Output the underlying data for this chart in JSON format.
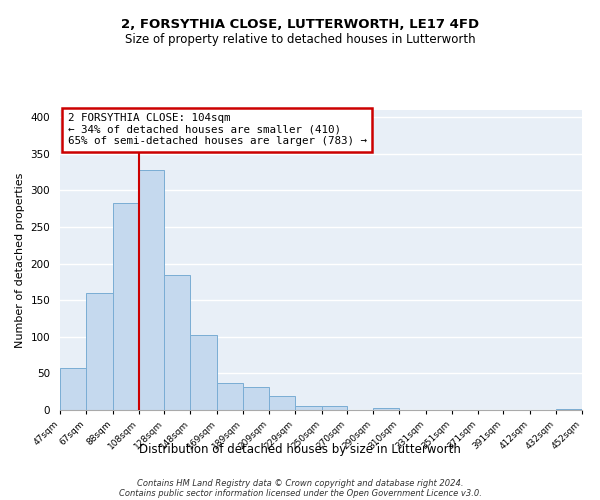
{
  "title": "2, FORSYTHIA CLOSE, LUTTERWORTH, LE17 4FD",
  "subtitle": "Size of property relative to detached houses in Lutterworth",
  "xlabel": "Distribution of detached houses by size in Lutterworth",
  "ylabel": "Number of detached properties",
  "bar_color": "#c5d9ee",
  "bar_edge_color": "#7aadd4",
  "annotation_box_text": "2 FORSYTHIA CLOSE: 104sqm\n← 34% of detached houses are smaller (410)\n65% of semi-detached houses are larger (783) →",
  "annotation_box_edge_color": "#cc0000",
  "red_line_x": 108,
  "red_line_color": "#cc0000",
  "footer_line1": "Contains HM Land Registry data © Crown copyright and database right 2024.",
  "footer_line2": "Contains public sector information licensed under the Open Government Licence v3.0.",
  "bins": [
    47,
    67,
    88,
    108,
    128,
    148,
    169,
    189,
    209,
    229,
    250,
    270,
    290,
    310,
    331,
    351,
    371,
    391,
    412,
    432,
    452
  ],
  "counts": [
    57,
    160,
    283,
    328,
    185,
    103,
    37,
    32,
    19,
    6,
    5,
    0,
    3,
    0,
    0,
    0,
    0,
    0,
    0,
    2
  ],
  "tick_labels": [
    "47sqm",
    "67sqm",
    "88sqm",
    "108sqm",
    "128sqm",
    "148sqm",
    "169sqm",
    "189sqm",
    "209sqm",
    "229sqm",
    "250sqm",
    "270sqm",
    "290sqm",
    "310sqm",
    "331sqm",
    "351sqm",
    "371sqm",
    "391sqm",
    "412sqm",
    "432sqm",
    "452sqm"
  ],
  "ylim": [
    0,
    410
  ],
  "yticks": [
    0,
    50,
    100,
    150,
    200,
    250,
    300,
    350,
    400
  ],
  "background_color": "#e8eff7"
}
